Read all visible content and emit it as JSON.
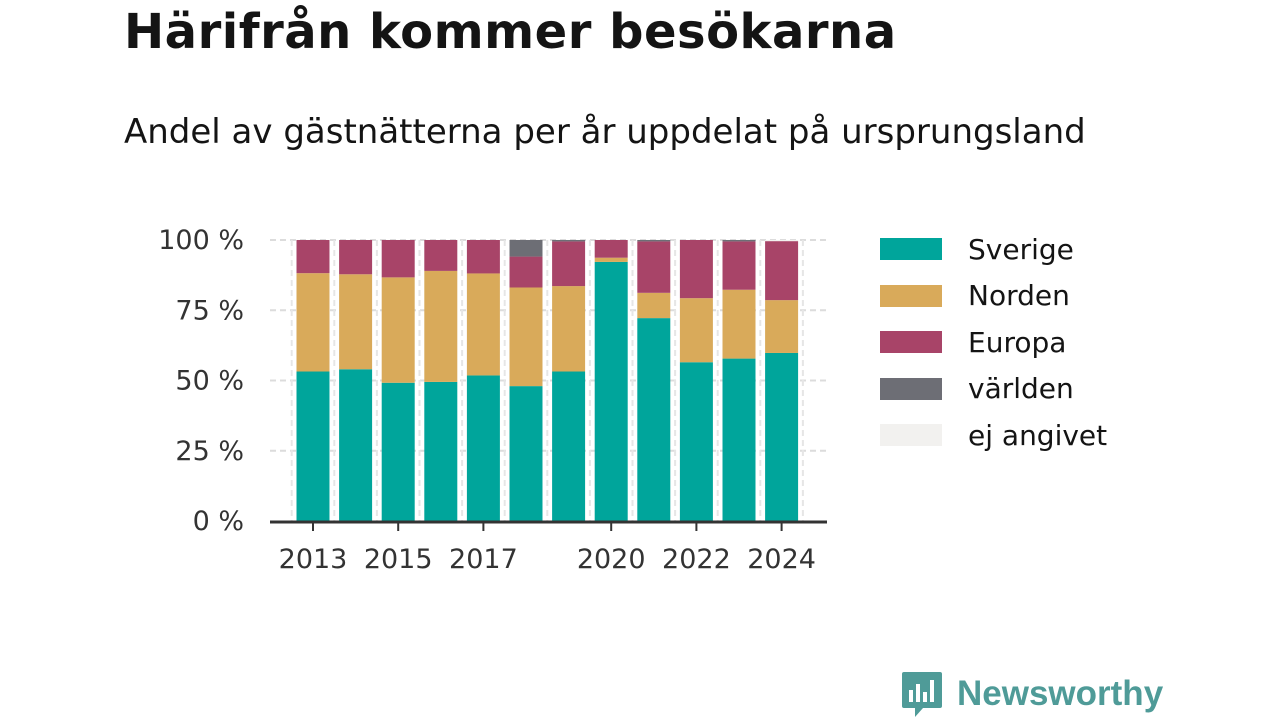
{
  "title": "Härifrån kommer besökarna",
  "subtitle": "Andel av gästnätterna per år uppdelat på ursprungsland",
  "brand": {
    "name": "Newsworthy",
    "icon": "newsworthy-logo-icon",
    "color": "#4f9b98"
  },
  "chart_data": {
    "type": "bar",
    "stacked": true,
    "title": "Härifrån kommer besökarna",
    "subtitle": "Andel av gästnätterna per år uppdelat på ursprungsland",
    "xlabel": "",
    "ylabel": "",
    "categories": [
      "2013",
      "2014",
      "2015",
      "2016",
      "2017",
      "2018",
      "2019",
      "2020",
      "2021",
      "2022",
      "2023",
      "2024"
    ],
    "x_tick_labels": [
      "2013",
      "2015",
      "2017",
      "2020",
      "2022",
      "2024"
    ],
    "y_ticks": [
      0,
      25,
      50,
      75,
      100
    ],
    "y_tick_labels": [
      "0 %",
      "25 %",
      "50 %",
      "75 %",
      "100 %"
    ],
    "ylim": [
      0,
      100
    ],
    "grid": true,
    "legend_position": "right",
    "series": [
      {
        "name": "Sverige",
        "color": "#00a59b",
        "values": [
          53.2,
          54.0,
          49.2,
          49.5,
          51.8,
          48.0,
          53.2,
          92.2,
          72.2,
          56.5,
          57.8,
          59.8
        ]
      },
      {
        "name": "Norden",
        "color": "#d9aa5a",
        "values": [
          35.0,
          33.8,
          37.5,
          39.5,
          36.3,
          35.1,
          30.4,
          1.5,
          9.0,
          22.8,
          24.5,
          18.8
        ]
      },
      {
        "name": "Europa",
        "color": "#a84468",
        "values": [
          11.8,
          12.2,
          13.3,
          11.0,
          11.9,
          11.0,
          15.9,
          6.3,
          18.3,
          20.7,
          17.2,
          21.0
        ]
      },
      {
        "name": "världen",
        "color": "#6d6e75",
        "values": [
          0,
          0,
          0,
          0,
          0,
          5.9,
          0.5,
          0,
          0.5,
          0,
          0.5,
          0
        ]
      },
      {
        "name": "ej angivet",
        "color": "#f2f1ef",
        "values": [
          0,
          0,
          0,
          0,
          0,
          0,
          0,
          0,
          0,
          0,
          0,
          0.4
        ]
      }
    ]
  }
}
